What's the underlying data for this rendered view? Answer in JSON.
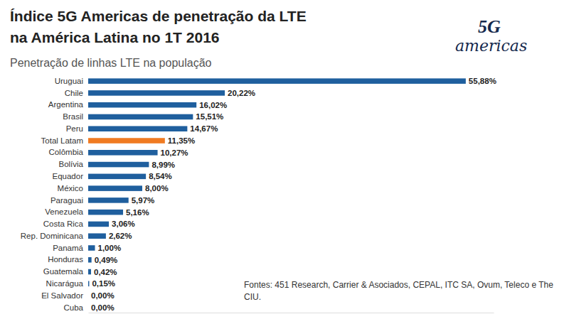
{
  "chart_data": {
    "type": "bar",
    "orientation": "horizontal",
    "title": "Índice 5G Americas de penetração da LTE\nna América Latina no 1T 2016",
    "subtitle": "Penetração de linhas LTE na população",
    "annotations": [
      "Fontes: 451 Research,  Carrier & Asociados, CEPAL, ITC SA, Ovum, Teleco e The CIU.",
      "5G",
      "americas"
    ],
    "categories": [
      "Uruguai",
      "Chile",
      "Argentina",
      "Brasil",
      "Peru",
      "Total Latam",
      "Colômbia",
      "Bolívia",
      "Equador",
      "México",
      "Paraguai",
      "Venezuela",
      "Costa Rica",
      "Rep. Dominicana",
      "Panamá",
      "Honduras",
      "Guatemala",
      "Nicarágua",
      "El Salvador",
      "Cuba"
    ],
    "values": [
      55.88,
      20.22,
      16.02,
      15.51,
      14.67,
      11.35,
      10.27,
      8.99,
      8.54,
      8.0,
      5.97,
      5.16,
      3.06,
      2.62,
      1.0,
      0.49,
      0.42,
      0.15,
      0.0,
      0.0
    ],
    "value_labels": [
      "55,88%",
      "20,22%",
      "16,02%",
      "15,51%",
      "14,67%",
      "11,35%",
      "10,27%",
      "8,99%",
      "8,54%",
      "8,00%",
      "5,97%",
      "5,16%",
      "3,06%",
      "2,62%",
      "1,00%",
      "0,49%",
      "0,42%",
      "0,15%",
      "0,00%",
      "0,00%"
    ],
    "colors": [
      "#1f5f9e",
      "#1f5f9e",
      "#1f5f9e",
      "#1f5f9e",
      "#1f5f9e",
      "#f07b22",
      "#1f5f9e",
      "#1f5f9e",
      "#1f5f9e",
      "#1f5f9e",
      "#1f5f9e",
      "#1f5f9e",
      "#1f5f9e",
      "#1f5f9e",
      "#1f5f9e",
      "#1f5f9e",
      "#1f5f9e",
      "#1f5f9e",
      "#1f5f9e",
      "#1f5f9e"
    ],
    "xlim": [
      0,
      60
    ],
    "data_labels": true,
    "tick_labels": false,
    "grid": false
  }
}
